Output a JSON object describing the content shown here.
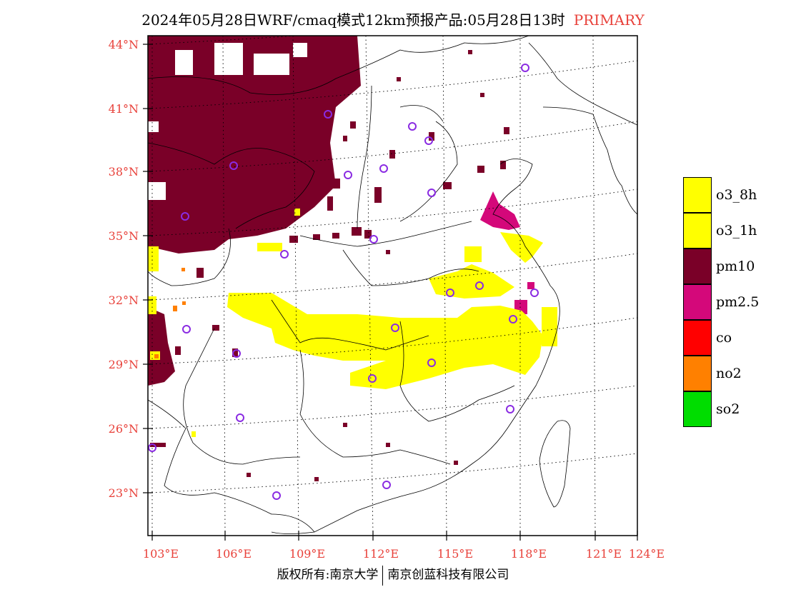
{
  "title": {
    "main": "2024年05月28日WRF/cmaq模式12km预报产品:05月28日13时",
    "tag": "PRIMARY"
  },
  "lat_labels": [
    "44°N",
    "41°N",
    "38°N",
    "35°N",
    "32°N",
    "29°N",
    "26°N",
    "23°N"
  ],
  "lon_labels": [
    "103°E",
    "106°E",
    "109°E",
    "112°E",
    "115°E",
    "118°E",
    "121°E",
    "124°E"
  ],
  "legend": [
    {
      "label": "o3_8h",
      "color": "#ffff00"
    },
    {
      "label": "o3_1h",
      "color": "#ffff00"
    },
    {
      "label": "pm10",
      "color": "#7a0028"
    },
    {
      "label": "pm2.5",
      "color": "#d4087a"
    },
    {
      "label": "co",
      "color": "#ff0000"
    },
    {
      "label": "no2",
      "color": "#ff8000"
    },
    {
      "label": "so2",
      "color": "#00dd00"
    }
  ],
  "footer": {
    "left": "版权所有:南京大学",
    "right": "南京创蓝科技有限公司"
  },
  "colors": {
    "title_tag": "#e8413a",
    "axis_labels": "#e8413a",
    "station_marker": "#8a2be2"
  }
}
